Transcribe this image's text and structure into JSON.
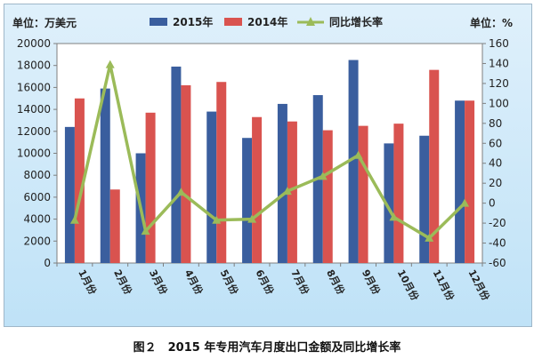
{
  "chart_data": {
    "type": "bar",
    "categories": [
      "1月份",
      "2月份",
      "3月份",
      "4月份",
      "5月份",
      "6月份",
      "7月份",
      "8月份",
      "9月份",
      "10月份",
      "11月份",
      "12月份"
    ],
    "series": [
      {
        "name": "2015年",
        "type": "bar",
        "axis": "left",
        "color": "#3a5e9e",
        "values": [
          12400,
          15900,
          10000,
          17900,
          13800,
          11400,
          14500,
          15300,
          18500,
          10900,
          11600,
          14800
        ]
      },
      {
        "name": "2014年",
        "type": "bar",
        "axis": "left",
        "color": "#d9534f",
        "values": [
          15000,
          6700,
          13700,
          16200,
          16500,
          13300,
          12900,
          12100,
          12500,
          12700,
          17600,
          14800
        ]
      },
      {
        "name": "同比增长率",
        "type": "line",
        "axis": "right",
        "color": "#9bbb59",
        "values": [
          -17,
          139,
          -28,
          11,
          -17,
          -16,
          12,
          27,
          48,
          -14,
          -35,
          0
        ]
      }
    ],
    "left_axis": {
      "unit_label": "单位：万美元",
      "ylim": [
        0,
        20000
      ],
      "ticks": [
        "0",
        "2000",
        "4000",
        "6000",
        "8000",
        "10000",
        "12000",
        "14000",
        "16000",
        "18000",
        "20000"
      ]
    },
    "right_axis": {
      "unit_label": "单位：%",
      "ylim": [
        -60,
        160
      ],
      "ticks": [
        "-60",
        "-40",
        "-20",
        "0",
        "20",
        "40",
        "60",
        "80",
        "100",
        "120",
        "140",
        "160"
      ]
    },
    "grid": false,
    "legend": "top-center"
  },
  "caption": "图２　2015 年专用汽车月度出口金额及同比增长率"
}
